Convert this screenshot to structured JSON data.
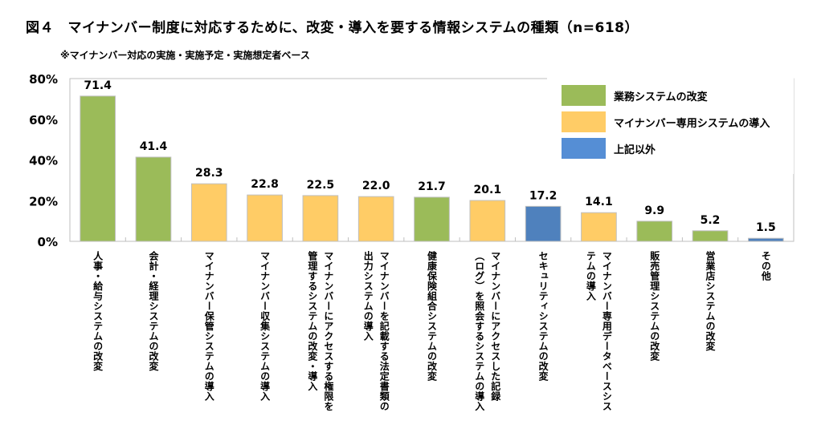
{
  "title": "図４　マイナンバー制度に対応するために、改変・導入を要する情報システムの種類（n=618）",
  "subtitle": "※マイナンバー対応の実施・実施予定・実施想定者ベース",
  "chart_data": {
    "type": "bar",
    "title": "図４　マイナンバー制度に対応するために、改変・導入を要する情報システムの種類（n=618）",
    "subtitle": "※マイナンバー対応の実施・実施予定・実施想定者ベース",
    "xlabel": "",
    "ylabel": "",
    "ylim": [
      0,
      80
    ],
    "yticks": [
      "0%",
      "20%",
      "40%",
      "60%",
      "80%"
    ],
    "ytick_values": [
      0,
      20,
      40,
      60,
      80
    ],
    "grid": false,
    "legend_position": "top-right",
    "legend": [
      {
        "key": "modify",
        "label": "業務システムの改変",
        "color": "#9BBB59"
      },
      {
        "key": "mynumber",
        "label": "マイナンバー専用システムの導入",
        "color": "#FFCC66"
      },
      {
        "key": "other",
        "label": "上記以外",
        "color": "#558ED5"
      }
    ],
    "categories": [
      "人事・給与システムの改変",
      "会計・経理システムの改変",
      "マイナンバー保管システムの導入",
      "マイナンバー収集システムの導入",
      "マイナンバーにアクセスする権限を管理するシステムの改変・導入",
      "マイナンバーを記載する法定書類の出力システムの導入",
      "健康保険組合システムの改変",
      "マイナンバーにアクセスした記録（ログ）を照会するシステムの導入",
      "セキュリティシステムの改変",
      "マイナンバー専用データベースシステムの導入",
      "販売管理システムの改変",
      "営業店システムの改変",
      "その他"
    ],
    "category_lines": [
      [
        "人事・給与システムの改変"
      ],
      [
        "会計・経理システムの改変"
      ],
      [
        "マイナンバー保管システムの導入"
      ],
      [
        "マイナンバー収集システムの導入"
      ],
      [
        "マイナンバーにアクセスする権限を",
        "管理するシステムの改変・導入"
      ],
      [
        "マイナンバーを記載する法定書類の",
        "出力システムの導入"
      ],
      [
        "健康保険組合システムの改変"
      ],
      [
        "マイナンバーにアクセスした記録",
        "（ログ）を照会するシステムの導入"
      ],
      [
        "セキュリティシステムの改変"
      ],
      [
        "マイナンバー専用データベースシス",
        "テムの導入"
      ],
      [
        "販売管理システムの改変"
      ],
      [
        "営業店システムの改変"
      ],
      [
        "その他"
      ]
    ],
    "values": [
      71.4,
      41.4,
      28.3,
      22.8,
      22.5,
      22.0,
      21.7,
      20.1,
      17.2,
      14.1,
      9.9,
      5.2,
      1.5
    ],
    "value_labels": [
      "71.4",
      "41.4",
      "28.3",
      "22.8",
      "22.5",
      "22.0",
      "21.7",
      "20.1",
      "17.2",
      "14.1",
      "9.9",
      "5.2",
      "1.5"
    ],
    "bar_groups": [
      "modify",
      "modify",
      "mynumber",
      "mynumber",
      "mynumber",
      "mynumber",
      "modify",
      "mynumber",
      "other",
      "mynumber",
      "modify",
      "modify",
      "other"
    ],
    "bar_colors": [
      "#9BBB59",
      "#9BBB59",
      "#FFCC66",
      "#FFCC66",
      "#FFCC66",
      "#FFCC66",
      "#9BBB59",
      "#FFCC66",
      "#4F81BD",
      "#FFCC66",
      "#9BBB59",
      "#9BBB59",
      "#4F81BD"
    ]
  }
}
